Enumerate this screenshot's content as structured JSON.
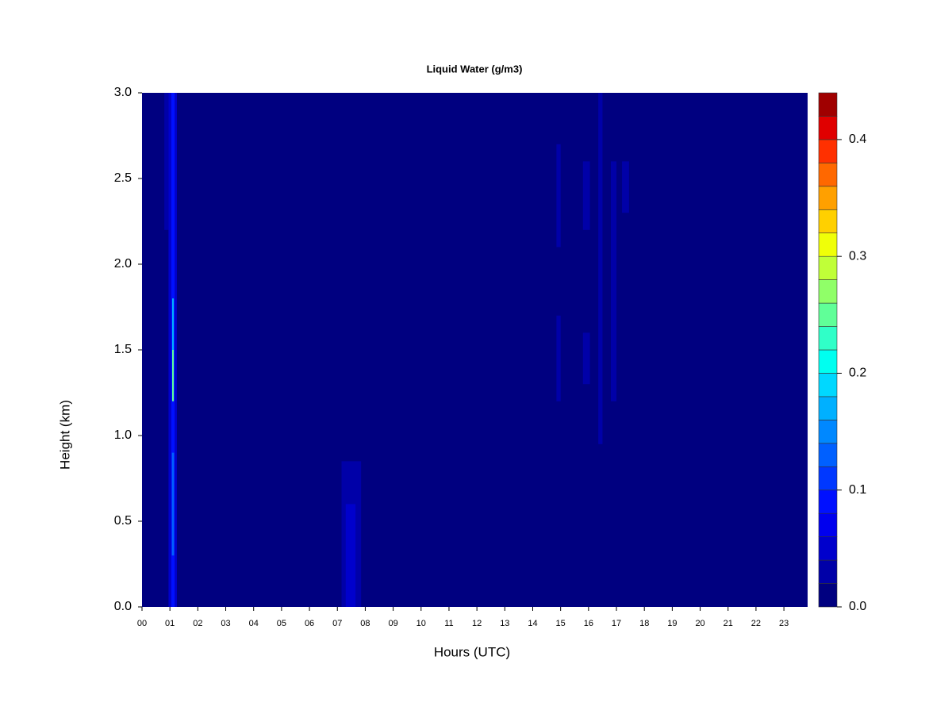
{
  "chart_data": {
    "type": "heatmap",
    "title": "Liquid Water (g/m3)",
    "xlabel": "Hours (UTC)",
    "ylabel": "Height (km)",
    "xlim": [
      0,
      23.85
    ],
    "ylim": [
      0,
      3
    ],
    "xticks": [
      {
        "value": 0,
        "label": "00"
      },
      {
        "value": 1,
        "label": "01"
      },
      {
        "value": 2,
        "label": "02"
      },
      {
        "value": 3,
        "label": "03"
      },
      {
        "value": 4,
        "label": "04"
      },
      {
        "value": 5,
        "label": "05"
      },
      {
        "value": 6,
        "label": "06"
      },
      {
        "value": 7,
        "label": "07"
      },
      {
        "value": 8,
        "label": "08"
      },
      {
        "value": 9,
        "label": "09"
      },
      {
        "value": 10,
        "label": "10"
      },
      {
        "value": 11,
        "label": "11"
      },
      {
        "value": 12,
        "label": "12"
      },
      {
        "value": 13,
        "label": "13"
      },
      {
        "value": 14,
        "label": "14"
      },
      {
        "value": 15,
        "label": "15"
      },
      {
        "value": 16,
        "label": "16"
      },
      {
        "value": 17,
        "label": "17"
      },
      {
        "value": 18,
        "label": "18"
      },
      {
        "value": 19,
        "label": "19"
      },
      {
        "value": 20,
        "label": "20"
      },
      {
        "value": 21,
        "label": "21"
      },
      {
        "value": 22,
        "label": "22"
      },
      {
        "value": 23,
        "label": "23"
      }
    ],
    "yticks": [
      {
        "value": 0,
        "label": "0.0"
      },
      0.5,
      {
        "value": 1,
        "label": "1.0"
      },
      1.5,
      {
        "value": 2,
        "label": "2.0"
      },
      2.5,
      {
        "value": 3,
        "label": "3.0"
      }
    ],
    "cells": [
      {
        "x": [
          0,
          23.85
        ],
        "y": [
          0,
          3
        ],
        "value": 0.01
      },
      {
        "x": [
          0.8,
          0.95
        ],
        "y": [
          2.2,
          3
        ],
        "value": 0.03
      },
      {
        "x": [
          0.95,
          1.25
        ],
        "y": [
          0,
          3
        ],
        "value": 0.05
      },
      {
        "x": [
          1.05,
          1.17
        ],
        "y": [
          0,
          3
        ],
        "value": 0.09
      },
      {
        "x": [
          1.07,
          1.15
        ],
        "y": [
          0.3,
          0.9
        ],
        "value": 0.13
      },
      {
        "x": [
          1.08,
          1.14
        ],
        "y": [
          1.2,
          1.5
        ],
        "value": 0.25
      },
      {
        "x": [
          1.08,
          1.14
        ],
        "y": [
          1.5,
          1.8
        ],
        "value": 0.17
      },
      {
        "x": [
          7.15,
          7.85
        ],
        "y": [
          0,
          0.85
        ],
        "value": 0.03
      },
      {
        "x": [
          7.3,
          7.65
        ],
        "y": [
          0,
          0.6
        ],
        "value": 0.05
      },
      {
        "x": [
          14.85,
          15.0
        ],
        "y": [
          2.1,
          2.7
        ],
        "value": 0.03
      },
      {
        "x": [
          14.85,
          15.0
        ],
        "y": [
          1.2,
          1.7
        ],
        "value": 0.03
      },
      {
        "x": [
          15.8,
          16.05
        ],
        "y": [
          2.2,
          2.6
        ],
        "value": 0.03
      },
      {
        "x": [
          15.8,
          16.05
        ],
        "y": [
          1.3,
          1.6
        ],
        "value": 0.03
      },
      {
        "x": [
          16.35,
          16.5
        ],
        "y": [
          0.95,
          3
        ],
        "value": 0.03
      },
      {
        "x": [
          16.8,
          17.0
        ],
        "y": [
          1.2,
          2.6
        ],
        "value": 0.03
      },
      {
        "x": [
          17.2,
          17.45
        ],
        "y": [
          2.3,
          2.6
        ],
        "value": 0.03
      }
    ],
    "colorbar": {
      "levels": [
        0,
        0.02,
        0.04,
        0.06,
        0.08,
        0.1,
        0.12,
        0.14,
        0.16,
        0.18,
        0.2,
        0.22,
        0.24,
        0.26,
        0.28,
        0.3,
        0.32,
        0.34,
        0.36,
        0.38,
        0.4,
        0.42,
        0.44
      ],
      "colors": [
        "#000080",
        "#0000a8",
        "#0000cc",
        "#0000ee",
        "#0010ff",
        "#0038ff",
        "#0060ff",
        "#0088ff",
        "#00b0ff",
        "#00d8ff",
        "#00fff0",
        "#30ffc8",
        "#60ff98",
        "#90ff68",
        "#c0ff38",
        "#f0ff08",
        "#ffd000",
        "#ffa000",
        "#ff6800",
        "#ff3000",
        "#e00000",
        "#a00000"
      ],
      "ticks": [
        {
          "value": 0,
          "label": "0.0"
        },
        0.1,
        0.2,
        0.3,
        0.4
      ]
    }
  }
}
